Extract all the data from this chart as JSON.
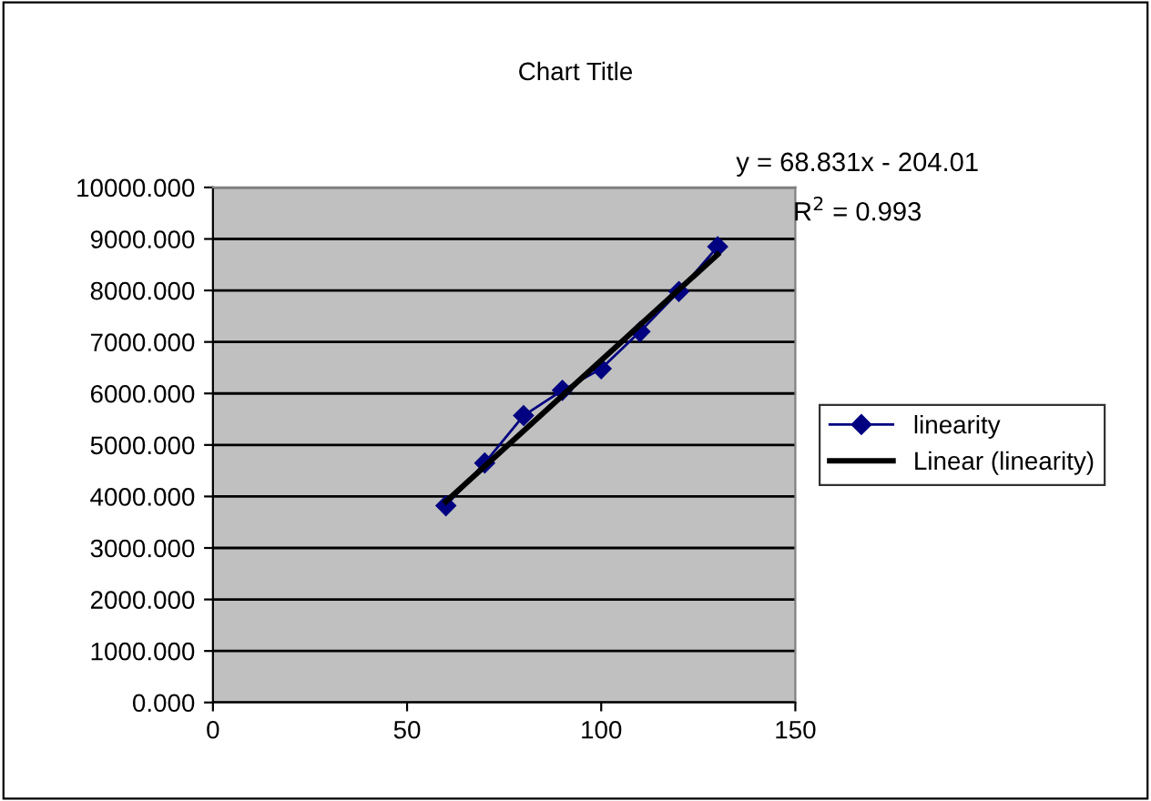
{
  "chart_data": {
    "type": "line",
    "title": "Chart Title",
    "series": [
      {
        "name": "linearity",
        "color": "#000080",
        "marker": "diamond",
        "x": [
          60,
          70,
          80,
          90,
          100,
          110,
          120,
          130
        ],
        "values": [
          3820,
          4650,
          5570,
          6060,
          6480,
          7200,
          7980,
          8850
        ]
      },
      {
        "name": "Linear (linearity)",
        "color": "#000000",
        "marker": "none",
        "x": [
          60,
          130
        ],
        "values": [
          3900,
          8700
        ]
      }
    ],
    "annotations": [
      "y = 68.831x - 204.01",
      "R$^{2}$ = 0.993"
    ],
    "xlim": [
      0,
      150
    ],
    "xticks": [
      0,
      50,
      100,
      150
    ],
    "ylim": [
      0,
      10000
    ],
    "yticks": [
      {
        "value": 0,
        "label": "0.000"
      },
      {
        "value": 1000,
        "label": "1000.000"
      },
      {
        "value": 2000,
        "label": "2000.000"
      },
      {
        "value": 3000,
        "label": "3000.000"
      },
      {
        "value": 4000,
        "label": "4000.000"
      },
      {
        "value": 5000,
        "label": "5000.000"
      },
      {
        "value": 6000,
        "label": "6000.000"
      },
      {
        "value": 7000,
        "label": "7000.000"
      },
      {
        "value": 8000,
        "label": "8000.000"
      },
      {
        "value": 9000,
        "label": "9000.000"
      },
      {
        "value": 10000,
        "label": "10000.000"
      }
    ],
    "grid": "y",
    "legend": "right"
  }
}
